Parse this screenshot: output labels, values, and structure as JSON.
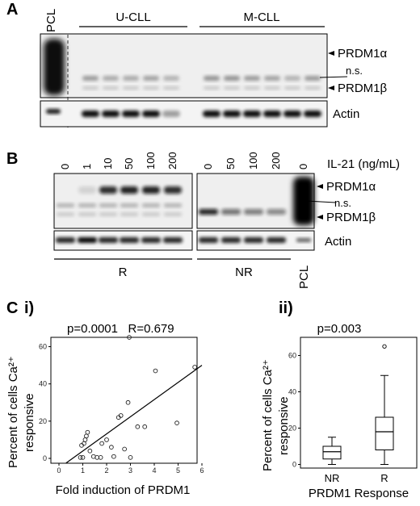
{
  "panel_A": {
    "letter": "A",
    "pcl_label": "PCL",
    "group_labels": [
      "U-CLL",
      "M-CLL"
    ],
    "band_labels": [
      "PRDM1α",
      "n.s.",
      "PRDM1β"
    ],
    "loading_label": "Actin"
  },
  "panel_B": {
    "letter": "B",
    "dose_header": "IL-21 (ng/mL)",
    "doses_left": [
      "0",
      "1",
      "10",
      "50",
      "100",
      "200"
    ],
    "doses_right": [
      "0",
      "50",
      "100",
      "200"
    ],
    "pcl_dose": "0",
    "band_labels": [
      "PRDM1α",
      "n.s.",
      "PRDM1β"
    ],
    "loading_label": "Actin",
    "group_labels": [
      "R",
      "NR"
    ],
    "pcl_label": "PCL"
  },
  "panel_C": {
    "letter": "C",
    "sub_i": {
      "label": "i)",
      "stats": "p=0.0001   R=0.679"
    },
    "sub_ii": {
      "label": "ii)",
      "stats": "p=0.003"
    }
  },
  "chart_data": [
    {
      "type": "scatter",
      "xlabel": "Fold induction  of PRDM1",
      "ylabel_line1": "Percent of cells Ca²⁺",
      "ylabel_line2": "responsive",
      "xlim": [
        0,
        6
      ],
      "ylim": [
        0,
        65
      ],
      "xticks": [
        0,
        1,
        2,
        3,
        4,
        5,
        6
      ],
      "yticks": [
        0,
        20,
        40,
        60
      ],
      "points": [
        {
          "x": 0.9,
          "y": 0.5
        },
        {
          "x": 1.0,
          "y": 0.5
        },
        {
          "x": 0.95,
          "y": 7
        },
        {
          "x": 1.05,
          "y": 8
        },
        {
          "x": 1.1,
          "y": 10
        },
        {
          "x": 1.15,
          "y": 12
        },
        {
          "x": 1.2,
          "y": 14
        },
        {
          "x": 1.3,
          "y": 4
        },
        {
          "x": 1.45,
          "y": 1
        },
        {
          "x": 1.6,
          "y": 0.5
        },
        {
          "x": 1.75,
          "y": 0.5
        },
        {
          "x": 1.8,
          "y": 8
        },
        {
          "x": 2.0,
          "y": 10
        },
        {
          "x": 2.2,
          "y": 6
        },
        {
          "x": 2.3,
          "y": 1
        },
        {
          "x": 2.5,
          "y": 22
        },
        {
          "x": 2.6,
          "y": 23
        },
        {
          "x": 2.75,
          "y": 5
        },
        {
          "x": 2.9,
          "y": 30
        },
        {
          "x": 3.0,
          "y": 0.5
        },
        {
          "x": 2.95,
          "y": 65
        },
        {
          "x": 3.3,
          "y": 17
        },
        {
          "x": 3.6,
          "y": 17
        },
        {
          "x": 4.05,
          "y": 47
        },
        {
          "x": 4.95,
          "y": 19
        },
        {
          "x": 5.7,
          "y": 49
        }
      ],
      "fit_line": {
        "x": [
          0.3,
          6.0
        ],
        "y": [
          -2.5,
          50
        ]
      }
    },
    {
      "type": "box",
      "xlabel": "PRDM1 Response",
      "ylabel_line1": "Percent of cells Ca²⁺",
      "ylabel_line2": "responsive",
      "ylim": [
        -2,
        70
      ],
      "yticks": [
        0,
        20,
        40,
        60
      ],
      "categories": [
        "NR",
        "R"
      ],
      "boxes": [
        {
          "name": "NR",
          "min": 0,
          "q1": 3,
          "median": 7,
          "q3": 10,
          "max": 15,
          "outliers": []
        },
        {
          "name": "R",
          "min": 0,
          "q1": 8,
          "median": 18,
          "q3": 26,
          "max": 49,
          "outliers": [
            65
          ]
        }
      ]
    }
  ]
}
